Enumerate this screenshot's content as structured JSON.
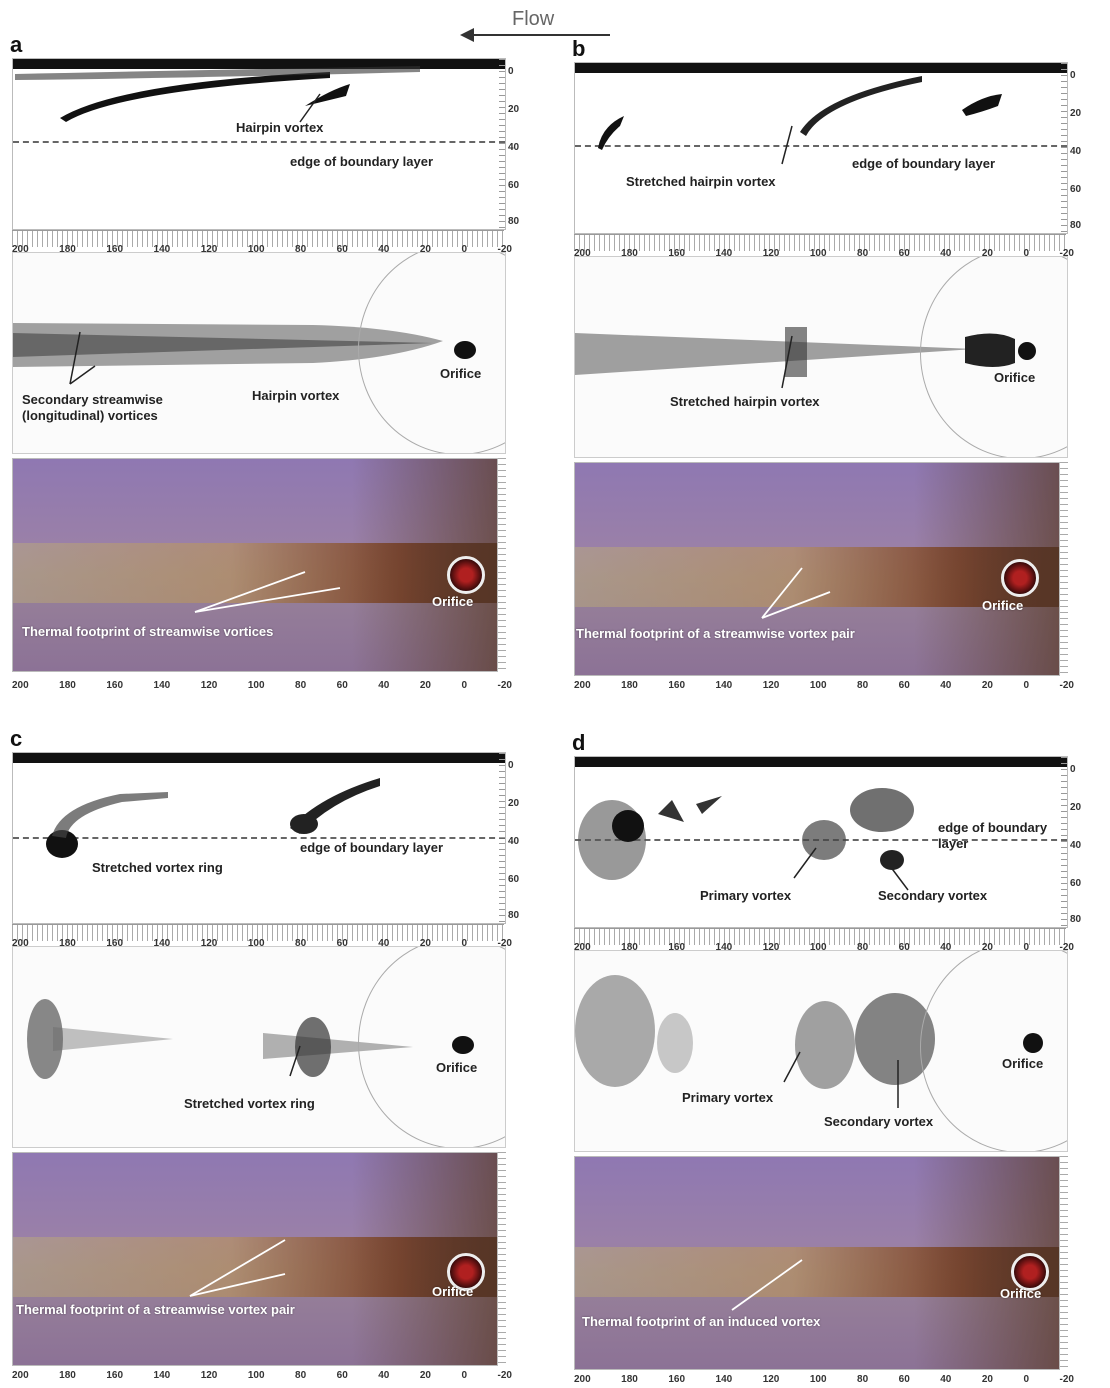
{
  "header": {
    "flow_label": "Flow"
  },
  "x_ticks": [
    "200",
    "180",
    "160",
    "140",
    "120",
    "100",
    "80",
    "60",
    "40",
    "20",
    "0",
    "-20"
  ],
  "y_ticks": [
    "0",
    "20",
    "40",
    "60",
    "80"
  ],
  "panels": [
    {
      "letter": "a",
      "side_labels": [
        "Hairpin vortex",
        "edge of boundary layer"
      ],
      "top_labels": [
        "Secondary streamwise (longitudinal) vortices",
        "Hairpin vortex",
        "Orifice"
      ],
      "thermal_labels": [
        "Thermal footprint of streamwise vortices",
        "Orifice"
      ]
    },
    {
      "letter": "b",
      "side_labels": [
        "Stretched hairpin vortex",
        "edge of boundary layer"
      ],
      "top_labels": [
        "Stretched hairpin vortex",
        "Orifice"
      ],
      "thermal_labels": [
        "Thermal footprint of a streamwise vortex pair",
        "Orifice"
      ]
    },
    {
      "letter": "c",
      "side_labels": [
        "Stretched vortex ring",
        "edge of boundary layer"
      ],
      "top_labels": [
        "Stretched vortex ring",
        "Orifice"
      ],
      "thermal_labels": [
        "Thermal footprint of a streamwise vortex pair",
        "Orifice"
      ]
    },
    {
      "letter": "d",
      "side_labels": [
        "Primary vortex",
        "Secondary vortex",
        "edge of boundary layer"
      ],
      "top_labels": [
        "Primary vortex",
        "Secondary vortex",
        "Orifice"
      ],
      "thermal_labels": [
        "Thermal footprint of an induced vortex",
        "Orifice"
      ]
    }
  ],
  "colors": {
    "thermal_bg": "#8f78b2",
    "footprint": "#7a3a1a",
    "orifice": "#b02020"
  }
}
